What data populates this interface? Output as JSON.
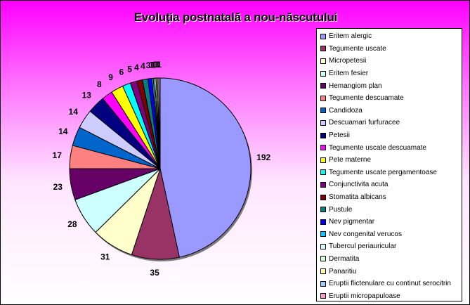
{
  "chart_data": {
    "type": "pie",
    "title": "Evoluţia postnatală a nou-născutului",
    "legend_position": "right",
    "slices": [
      {
        "label": "Eritem alergic",
        "value": 192,
        "color": "#9999ff"
      },
      {
        "label": "Tegumente uscate",
        "value": 35,
        "color": "#993366"
      },
      {
        "label": "Micropetesii",
        "value": 31,
        "color": "#ffffcc"
      },
      {
        "label": "Eritem fesier",
        "value": 28,
        "color": "#ccffff"
      },
      {
        "label": "Hemangiom plan",
        "value": 23,
        "color": "#660066"
      },
      {
        "label": "Tegumente descuamate",
        "value": 17,
        "color": "#ff8080"
      },
      {
        "label": "Candidoza",
        "value": 14,
        "color": "#0066cc"
      },
      {
        "label": "Descuamari furfuracee",
        "value": 14,
        "color": "#ccccff"
      },
      {
        "label": "Petesii",
        "value": 13,
        "color": "#000080"
      },
      {
        "label": "Tegumente uscate descuamate",
        "value": 8,
        "color": "#ff00ff"
      },
      {
        "label": "Pete materne",
        "value": 9,
        "color": "#ffff00"
      },
      {
        "label": "Tegumente uscate pergamentoase",
        "value": 6,
        "color": "#00ffff"
      },
      {
        "label": "Conjunctivita acuta",
        "value": 5,
        "color": "#800080"
      },
      {
        "label": "Stomatita albicans",
        "value": 4,
        "color": "#800000"
      },
      {
        "label": "Pustule",
        "value": 4,
        "color": "#008080"
      },
      {
        "label": "Nev pigmentar",
        "value": 3,
        "color": "#0000ff"
      },
      {
        "label": "Nev congenital verucos",
        "value": 1,
        "color": "#00ccff"
      },
      {
        "label": "Tubercul periauricular",
        "value": 1,
        "color": "#ccffff"
      },
      {
        "label": "Dermatita",
        "value": 1,
        "color": "#ccffcc"
      },
      {
        "label": "Panaritiu",
        "value": 1,
        "color": "#ffff99"
      },
      {
        "label": "Eruptii flictenulare cu continut serocitrin",
        "value": 1,
        "color": "#99ccff"
      },
      {
        "label": "Eruptii micropapuloase",
        "value": 1,
        "color": "#ff99cc"
      }
    ]
  }
}
